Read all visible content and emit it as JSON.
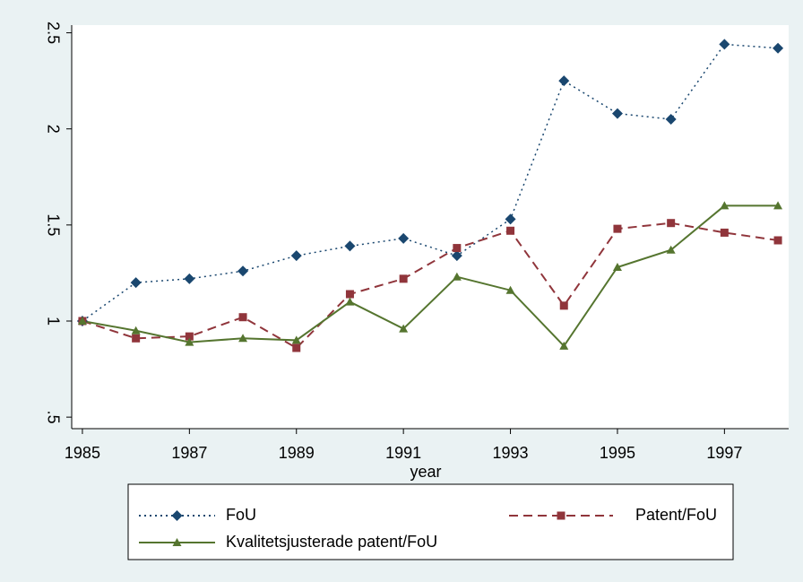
{
  "chart_data": {
    "type": "line",
    "x_label": "year",
    "x": [
      1985,
      1986,
      1987,
      1988,
      1989,
      1990,
      1991,
      1992,
      1993,
      1994,
      1995,
      1996,
      1997,
      1998
    ],
    "series": [
      {
        "name": "FoU",
        "color": "#1a476f",
        "marker": "diamond",
        "dash": "dot",
        "values": [
          1.0,
          1.2,
          1.22,
          1.26,
          1.34,
          1.39,
          1.43,
          1.34,
          1.53,
          2.25,
          2.08,
          2.05,
          2.44,
          2.42
        ]
      },
      {
        "name": "Patent/FoU",
        "color": "#90353b",
        "marker": "square",
        "dash": "dash",
        "values": [
          1.0,
          0.91,
          0.92,
          1.02,
          0.86,
          1.14,
          1.22,
          1.38,
          1.47,
          1.08,
          1.48,
          1.51,
          1.46,
          1.42
        ]
      },
      {
        "name": "Kvalitetsjusterade patent/FoU",
        "color": "#55752f",
        "marker": "triangle",
        "dash": "solid",
        "values": [
          1.0,
          0.95,
          0.89,
          0.91,
          0.9,
          1.1,
          0.96,
          1.23,
          1.16,
          0.87,
          1.28,
          1.37,
          1.6,
          1.6
        ]
      }
    ],
    "xlim": [
      1984.8,
      1998.2
    ],
    "xticks": [
      1985,
      1987,
      1989,
      1991,
      1993,
      1995,
      1997
    ],
    "ylim": [
      0.44,
      2.54
    ],
    "yticks": [
      {
        "value": 0.5,
        "label": ".5"
      },
      1,
      1.5,
      2,
      2.5
    ],
    "grid": false,
    "legend": "bottom"
  }
}
